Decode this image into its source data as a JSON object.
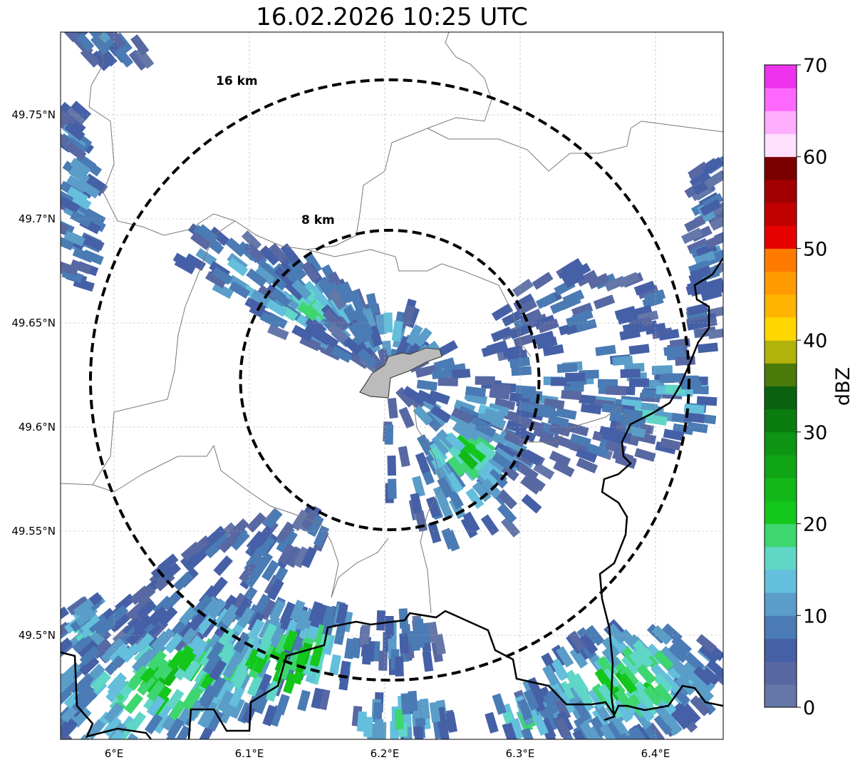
{
  "title": "16.02.2026 10:25 UTC",
  "map": {
    "lon_ticks": [
      "6°E",
      "6.1°E",
      "6.2°E",
      "6.3°E",
      "6.4°E"
    ],
    "lat_ticks": [
      "49.75°N",
      "49.7°N",
      "49.65°N",
      "49.6°N",
      "49.55°N",
      "49.5°N"
    ],
    "range_rings": [
      {
        "label": "16 km",
        "radius_km": 16
      },
      {
        "label": "8 km",
        "radius_km": 8
      }
    ]
  },
  "colorbar": {
    "label": "dBZ",
    "min": 0,
    "max": 70,
    "step": 2.5,
    "tick_labels": [
      "0",
      "10",
      "20",
      "30",
      "40",
      "50",
      "60",
      "70"
    ],
    "colors": [
      "#6577a8",
      "#5868a2",
      "#4560a6",
      "#4a7bb4",
      "#5a9dc8",
      "#63bfdc",
      "#5fd6c6",
      "#3dd66f",
      "#13c71b",
      "#12b818",
      "#10a515",
      "#0e9413",
      "#0b7c10",
      "#0a6210",
      "#4a7a0a",
      "#b1b20a",
      "#ffd700",
      "#ffb500",
      "#ff9b00",
      "#ff7b00",
      "#e60000",
      "#c10000",
      "#a00000",
      "#7a0000",
      "#ffe0ff",
      "#ffadff",
      "#ff68ff",
      "#ee33ee"
    ]
  }
}
